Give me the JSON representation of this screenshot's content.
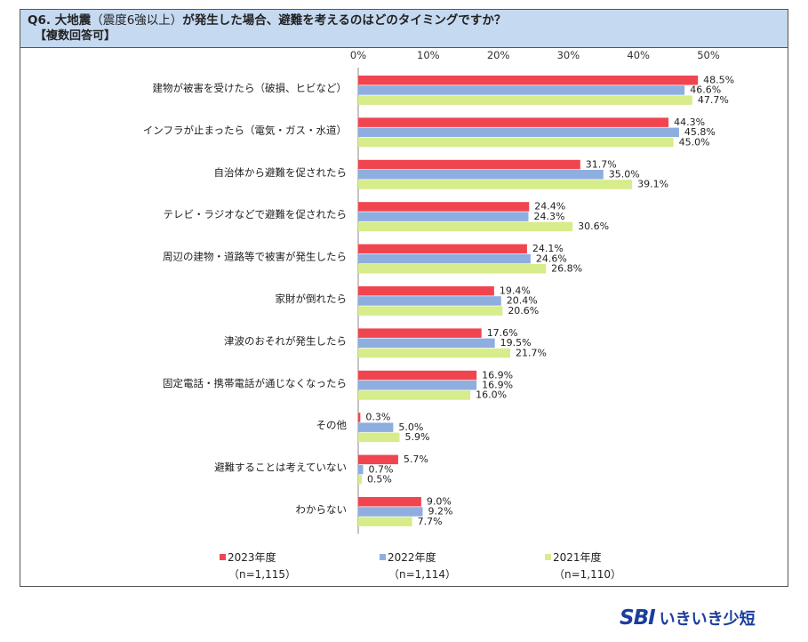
{
  "header": {
    "title_main": "Q6. 大地震",
    "title_paren": "（震度6強以上）",
    "title_rest": "が発生した場合、避難を考えるのはどのタイミングですか？",
    "subtitle": "【複数回答可】"
  },
  "chart_data": {
    "type": "bar",
    "orientation": "horizontal",
    "categories": [
      "建物が被害を受けたら（破損、ヒビなど）",
      "インフラが止まったら（電気・ガス・水道）",
      "自治体から避難を促されたら",
      "テレビ・ラジオなどで避難を促されたら",
      "周辺の建物・道路等で被害が発生したら",
      "家財が倒れたら",
      "津波のおそれが発生したら",
      "固定電話・携帯電話が通じなくなったら",
      "その他",
      "避難することは考えていない",
      "わからない"
    ],
    "series": [
      {
        "name": "2023年度",
        "n": "（n=1,115）",
        "color": "#f0454f",
        "values": [
          48.5,
          44.3,
          31.7,
          24.4,
          24.1,
          19.4,
          17.6,
          16.9,
          0.3,
          5.7,
          9.0
        ],
        "labels": [
          "48.5%",
          "44.3%",
          "31.7%",
          "24.4%",
          "24.1%",
          "19.4%",
          "17.6%",
          "16.9%",
          "0.3%",
          "5.7%",
          "9.0%"
        ]
      },
      {
        "name": "2022年度",
        "n": "（n=1,114）",
        "color": "#8eaee0",
        "values": [
          46.6,
          45.8,
          35.0,
          24.3,
          24.6,
          20.4,
          19.5,
          16.9,
          5.0,
          0.7,
          9.2
        ],
        "labels": [
          "46.6%",
          "45.8%",
          "35.0%",
          "24.3%",
          "24.6%",
          "20.4%",
          "19.5%",
          "16.9%",
          "5.0%",
          "0.7%",
          "9.2%"
        ]
      },
      {
        "name": "2021年度",
        "n": "（n=1,110）",
        "color": "#d7ec8a",
        "values": [
          47.7,
          45.0,
          39.1,
          30.6,
          26.8,
          20.6,
          21.7,
          16.0,
          5.9,
          0.5,
          7.7
        ],
        "labels": [
          "47.7%",
          "45.0%",
          "39.1%",
          "30.6%",
          "26.8%",
          "20.6%",
          "21.7%",
          "16.0%",
          "5.9%",
          "0.5%",
          "7.7%"
        ]
      }
    ],
    "x_ticks": [
      0,
      10,
      20,
      30,
      40,
      50
    ],
    "x_tick_labels": [
      "0%",
      "10%",
      "20%",
      "30%",
      "40%",
      "50%"
    ],
    "xlim": [
      0,
      50
    ],
    "legend_position": "bottom"
  },
  "brand": {
    "logo_text": "SBI",
    "name": "いきいき少短"
  }
}
